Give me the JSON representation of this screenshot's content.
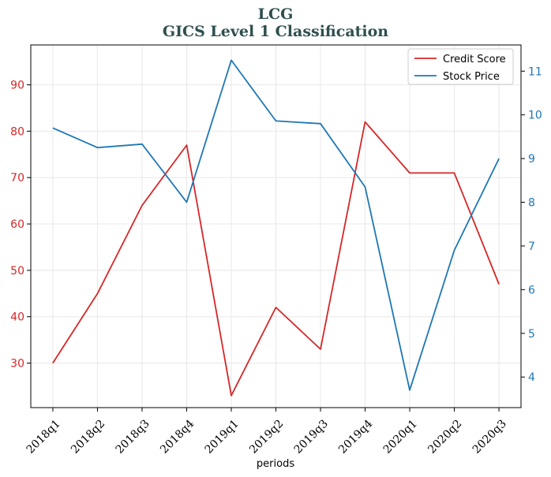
{
  "chart_data": {
    "type": "line",
    "title": "LCG",
    "subtitle": "GICS Level 1 Classification",
    "xlabel": "periods",
    "categories": [
      "2018q1",
      "2018q2",
      "2018q3",
      "2018q4",
      "2019q1",
      "2019q2",
      "2019q3",
      "2019q4",
      "2020q1",
      "2020q2",
      "2020q3"
    ],
    "series": [
      {
        "name": "Credit Score",
        "axis": "left",
        "color": "#d62728",
        "values": [
          30,
          45,
          64,
          77,
          23,
          42,
          33,
          82,
          71,
          71,
          47
        ]
      },
      {
        "name": "Stock Price",
        "axis": "right",
        "color": "#1f77b4",
        "values": [
          9.7,
          9.25,
          9.33,
          8.0,
          11.25,
          9.86,
          9.8,
          8.35,
          3.7,
          6.9,
          9.0
        ]
      }
    ],
    "y_left": {
      "lim": [
        20.4,
        98.6
      ],
      "ticks": [
        30,
        40,
        50,
        60,
        70,
        80,
        90
      ],
      "tick_color": "#d62728"
    },
    "y_right": {
      "lim": [
        3.3,
        11.6
      ],
      "ticks": [
        4,
        5,
        6,
        7,
        8,
        9,
        10,
        11
      ],
      "tick_color": "#1f77b4"
    },
    "grid": true,
    "legend_position": "top-right"
  }
}
